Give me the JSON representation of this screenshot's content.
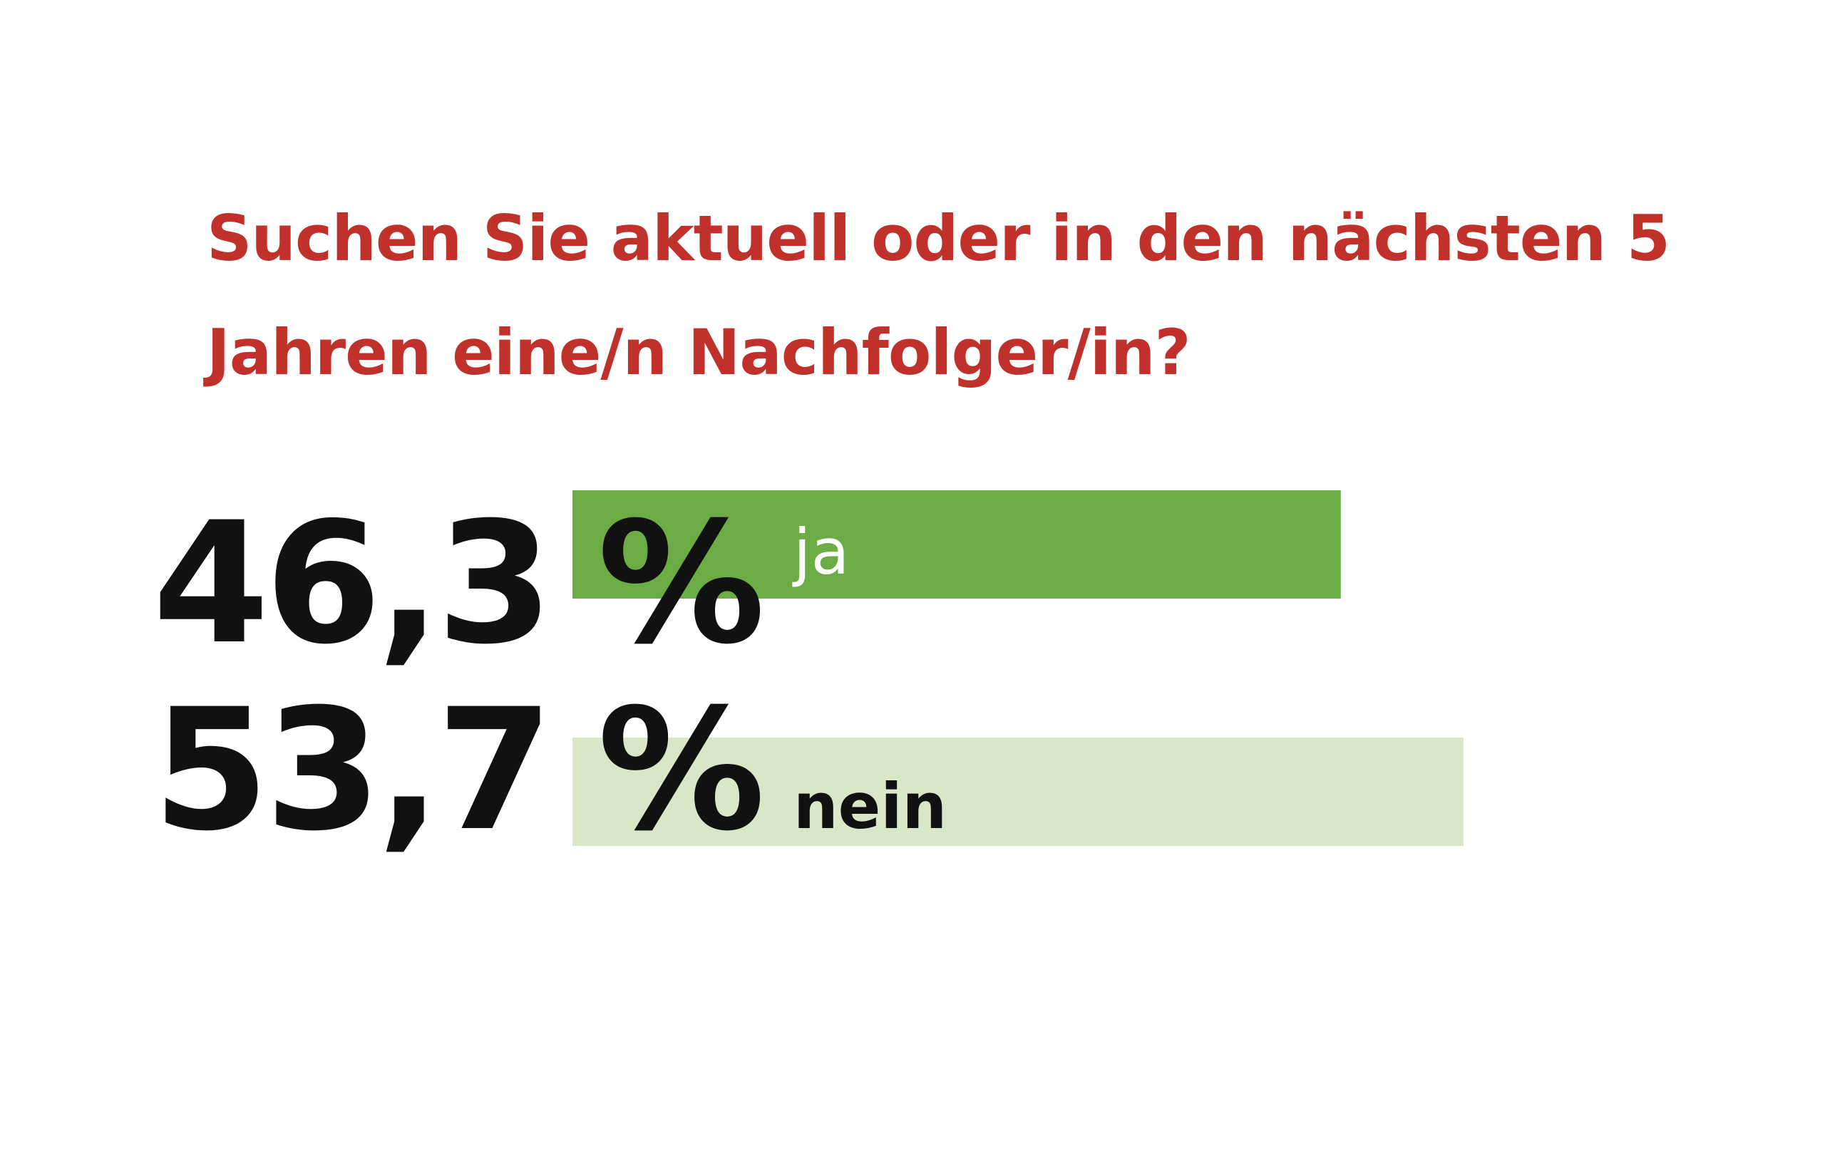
{
  "chart_data": {
    "type": "bar",
    "title": "Suchen Sie aktuell oder in den nächsten 5 Jahren eine/n Nachfolger/in?",
    "categories": [
      "ja",
      "nein"
    ],
    "values": [
      46.3,
      53.7
    ],
    "value_labels": [
      "46,3",
      "53,7"
    ],
    "unit": "%",
    "colors": [
      "#6cac45",
      "#d9e7c8"
    ],
    "label_colors": [
      "#ffffff",
      "#111111"
    ]
  }
}
